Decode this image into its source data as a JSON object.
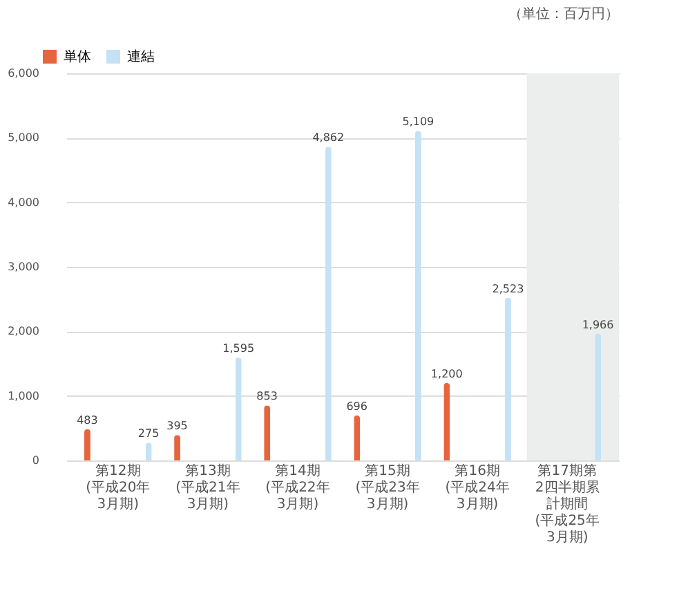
{
  "chart_data": {
    "type": "bar",
    "categories": [
      "第12期(平成20年3月期)",
      "第13期(平成21年3月期)",
      "第14期(平成22年3月期)",
      "第15期(平成23年3月期)",
      "第16期(平成24年3月期)",
      "第17期第2四半期累計期間(平成25年3月期)"
    ],
    "series": [
      {
        "name": "単体",
        "color": "#e8643c",
        "values": [
          483,
          395,
          853,
          696,
          1200,
          null
        ],
        "value_labels": [
          "483",
          "395",
          "853",
          "696",
          "1,200",
          null
        ]
      },
      {
        "name": "連結",
        "color": "#c4e2f6",
        "values": [
          275,
          1595,
          4862,
          5109,
          2523,
          1966
        ],
        "value_labels": [
          "275",
          "1,595",
          "4,862",
          "5,109",
          "2,523",
          "1,966"
        ]
      }
    ],
    "ylim": [
      0,
      6000
    ],
    "yticks": [
      0,
      {
        "value": 1000,
        "label": "1,000"
      },
      {
        "value": 2000,
        "label": "2,000"
      },
      {
        "value": 3000,
        "label": "3,000"
      },
      {
        "value": 4000,
        "label": "4,000"
      },
      {
        "value": 5000,
        "label": "5,000"
      },
      {
        "value": 6000,
        "label": "6,000"
      }
    ],
    "grid": "y",
    "legend": "top left",
    "bands": [
      {
        "axis": "x",
        "from": "第17期第2四半期累計期間(平成25年3月期)",
        "to": "第17期第2四半期累計期間(平成25年3月期)",
        "color": "#eceeed"
      }
    ],
    "annotations": [
      "（単位：百万円）"
    ]
  }
}
